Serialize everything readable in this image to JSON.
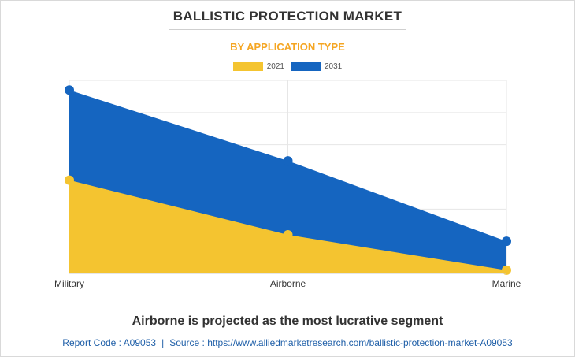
{
  "header": {
    "title": "BALLISTIC PROTECTION MARKET",
    "subtitle": "BY APPLICATION TYPE"
  },
  "colors": {
    "series_2021": "#f4c430",
    "series_2031": "#1565c0",
    "title": "#333333",
    "subtitle": "#f5a623",
    "footer": "#1f5fa8"
  },
  "chart_data": {
    "type": "area",
    "categories": [
      "Military",
      "Airborne",
      "Marine"
    ],
    "series": [
      {
        "name": "2021",
        "values": [
          29,
          12,
          1
        ]
      },
      {
        "name": "2031",
        "values": [
          57,
          35,
          10
        ]
      }
    ],
    "ylim": [
      0,
      60
    ],
    "grid": true,
    "legend": "top-center",
    "stacked": false
  },
  "headline": "Airborne is projected as the most lucrative segment",
  "footer": {
    "report_code": "Report Code : A09053",
    "separator": "|",
    "source": "Source : https://www.alliedmarketresearch.com/ballistic-protection-market-A09053"
  }
}
